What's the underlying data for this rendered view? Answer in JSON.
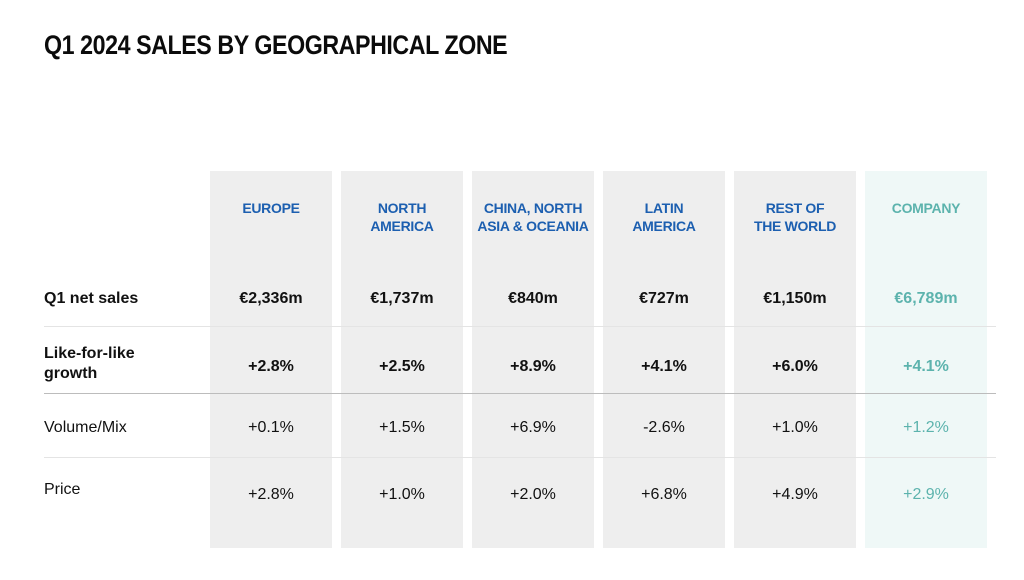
{
  "title": "Q1 2024 SALES BY GEOGRAPHICAL ZONE",
  "colors": {
    "zone_header": "#1c5fb0",
    "company_accent": "#5cb3ad",
    "column_fill": "#eeeeee",
    "company_fill": "#eff8f7"
  },
  "columns": [
    {
      "label": "EUROPE"
    },
    {
      "label": "NORTH\nAMERICA"
    },
    {
      "label": "CHINA, NORTH\nASIA & OCEANIA"
    },
    {
      "label": "LATIN\nAMERICA"
    },
    {
      "label": "REST OF\nTHE WORLD"
    },
    {
      "label": "COMPANY"
    }
  ],
  "rows": [
    {
      "label": "Q1 net sales",
      "values": [
        "€2,336m",
        "€1,737m",
        "€840m",
        "€727m",
        "€1,150m",
        "€6,789m"
      ]
    },
    {
      "label": "Like-for-like\ngrowth",
      "values": [
        "+2.8%",
        "+2.5%",
        "+8.9%",
        "+4.1%",
        "+6.0%",
        "+4.1%"
      ]
    },
    {
      "label": "Volume/Mix",
      "values": [
        "+0.1%",
        "+1.5%",
        "+6.9%",
        "-2.6%",
        "+1.0%",
        "+1.2%"
      ]
    },
    {
      "label": "Price",
      "values": [
        "+2.8%",
        "+1.0%",
        "+2.0%",
        "+6.8%",
        "+4.9%",
        "+2.9%"
      ]
    }
  ]
}
